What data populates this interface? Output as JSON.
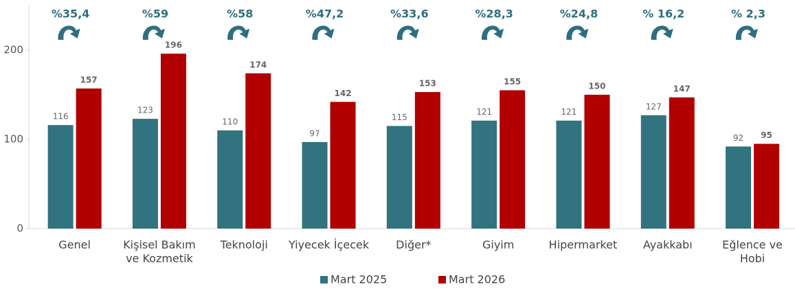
{
  "chart_data": {
    "type": "bar",
    "categories": [
      "Genel",
      "Kişisel Bakım ve Kozmetik",
      "Teknoloji",
      "Yiyecek İçecek",
      "Diğer*",
      "Giyim",
      "Hipermarket",
      "Ayakkabı",
      "Eğlence ve Hobi"
    ],
    "series": [
      {
        "name": "Mart 2025",
        "color": "#31737f",
        "values": [
          116,
          123,
          110,
          97,
          115,
          121,
          121,
          127,
          92
        ]
      },
      {
        "name": "Mart 2026",
        "color": "#b00000",
        "values": [
          157,
          196,
          174,
          142,
          153,
          155,
          150,
          147,
          95
        ]
      }
    ],
    "annotations": [
      "%35,4",
      "%59",
      "%58",
      "%47,2",
      "%33,6",
      "%28,3",
      "%24,8",
      "% 16,2",
      "% 2,3"
    ],
    "ylim": [
      0,
      250
    ],
    "yticks": [
      0,
      100,
      200
    ],
    "grid": false,
    "legend": "bottom"
  }
}
